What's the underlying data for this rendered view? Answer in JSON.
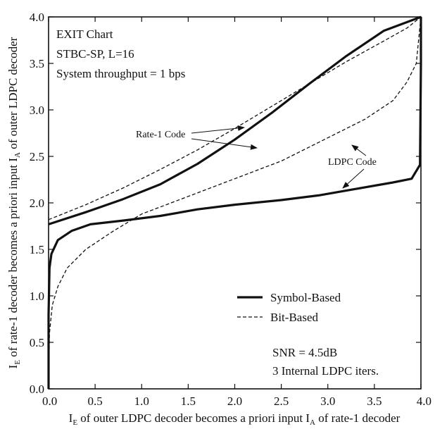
{
  "chart_data": {
    "type": "line",
    "xlabel_parts": [
      "I",
      "E",
      " of outer LDPC decoder becomes a priori input I",
      "A",
      " of rate-1 decoder"
    ],
    "ylabel_parts": [
      "I",
      "E",
      " of rate-1 decoder becomes a priori input I",
      "A",
      " of outer LDPC decoder"
    ],
    "xlim": [
      0.0,
      4.0
    ],
    "ylim": [
      0.0,
      4.0
    ],
    "xticks": [
      "0.0",
      "0.5",
      "1.0",
      "1.5",
      "2.0",
      "2.5",
      "3.0",
      "3.5",
      "4.0"
    ],
    "yticks": [
      "0.0",
      "0.5",
      "1.0",
      "1.5",
      "2.0",
      "2.5",
      "3.0",
      "3.5",
      "4.0"
    ],
    "grid": false,
    "info_lines": [
      "EXIT Chart",
      "STBC-SP, L=16",
      "System throughput = 1 bps"
    ],
    "footer_lines": [
      "SNR = 4.5dB",
      "3 Internal LDPC iters."
    ],
    "legend": [
      {
        "label": "Symbol-Based",
        "style": "solid"
      },
      {
        "label": "Bit-Based",
        "style": "dashed"
      }
    ],
    "annotations": [
      {
        "text": "Rate-1 Code"
      },
      {
        "text": "LDPC Code"
      }
    ],
    "series": [
      {
        "key": "symbol-rate1",
        "style": "solid",
        "x": [
          0.0,
          0.4,
          0.8,
          1.2,
          1.6,
          2.0,
          2.4,
          2.8,
          3.2,
          3.6,
          4.0
        ],
        "y": [
          1.77,
          1.9,
          2.04,
          2.2,
          2.42,
          2.68,
          2.97,
          3.28,
          3.58,
          3.85,
          4.0
        ]
      },
      {
        "key": "symbol-ldpc",
        "style": "solid",
        "x": [
          0.0,
          0.0,
          0.01,
          0.03,
          0.1,
          0.25,
          0.45,
          0.8,
          1.2,
          1.6,
          2.0,
          2.5,
          2.9,
          3.3,
          3.7,
          3.9,
          3.99,
          4.0,
          4.0
        ],
        "y": [
          0.0,
          0.8,
          1.3,
          1.45,
          1.6,
          1.7,
          1.77,
          1.81,
          1.86,
          1.93,
          1.98,
          2.03,
          2.08,
          2.15,
          2.22,
          2.26,
          2.41,
          3.5,
          4.0
        ]
      },
      {
        "key": "bit-rate1",
        "style": "dashed",
        "x": [
          0.0,
          0.4,
          0.8,
          1.2,
          1.6,
          2.0,
          2.4,
          2.8,
          3.2,
          3.6,
          3.85,
          4.0
        ],
        "y": [
          1.82,
          1.98,
          2.16,
          2.36,
          2.57,
          2.8,
          3.04,
          3.28,
          3.52,
          3.74,
          3.88,
          4.0
        ]
      },
      {
        "key": "bit-ldpc",
        "style": "dashed",
        "x": [
          0.0,
          0.01,
          0.04,
          0.1,
          0.2,
          0.4,
          0.7,
          1.0,
          1.5,
          2.0,
          2.5,
          3.0,
          3.4,
          3.7,
          3.85,
          3.95,
          4.0
        ],
        "y": [
          0.0,
          0.6,
          0.9,
          1.1,
          1.3,
          1.5,
          1.7,
          1.88,
          2.07,
          2.26,
          2.45,
          2.7,
          2.9,
          3.1,
          3.3,
          3.5,
          4.0
        ]
      }
    ]
  }
}
